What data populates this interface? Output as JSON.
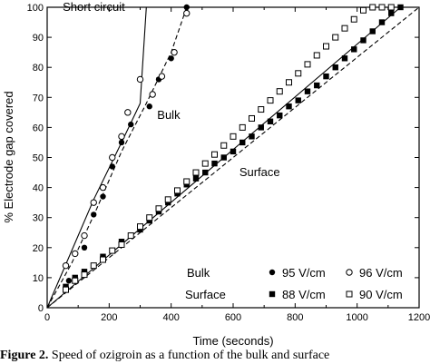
{
  "chart_data": {
    "type": "scatter",
    "xlabel": "Time (seconds)",
    "ylabel": "% Electrode gap covered",
    "xlim": [
      0,
      1200
    ],
    "ylim": [
      0,
      100
    ],
    "x_ticks": [
      0,
      200,
      400,
      600,
      800,
      1000,
      1200
    ],
    "y_ticks": [
      0,
      10,
      20,
      30,
      40,
      50,
      60,
      70,
      80,
      90,
      100
    ],
    "annotations": [
      {
        "text": "Short circuit",
        "x": 50,
        "y": 100
      },
      {
        "text": "Bulk",
        "x": 355,
        "y": 64
      },
      {
        "text": "Surface",
        "x": 620,
        "y": 45
      }
    ],
    "legend": {
      "position": "bottom-right",
      "rows": [
        {
          "label": "Bulk",
          "entries": [
            "95 V/cm",
            "96 V/cm"
          ]
        },
        {
          "label": "Surface",
          "entries": [
            "88 V/cm",
            "90 V/cm"
          ]
        }
      ]
    },
    "series": [
      {
        "name": "95 V/cm",
        "group": "Bulk",
        "marker": "filled-circle",
        "points": [
          [
            70,
            9
          ],
          [
            120,
            20
          ],
          [
            150,
            31
          ],
          [
            180,
            37
          ],
          [
            210,
            47
          ],
          [
            240,
            55
          ],
          [
            270,
            61
          ],
          [
            330,
            67
          ],
          [
            360,
            76
          ],
          [
            400,
            83
          ],
          [
            450,
            100
          ]
        ]
      },
      {
        "name": "96 V/cm",
        "group": "Bulk",
        "marker": "open-circle",
        "points": [
          [
            60,
            14
          ],
          [
            90,
            18
          ],
          [
            120,
            24
          ],
          [
            150,
            35
          ],
          [
            180,
            40
          ],
          [
            210,
            50
          ],
          [
            240,
            57
          ],
          [
            260,
            65
          ],
          [
            300,
            76
          ],
          [
            340,
            71
          ],
          [
            370,
            77
          ],
          [
            410,
            85
          ],
          [
            450,
            98
          ]
        ]
      },
      {
        "name": "88 V/cm",
        "group": "Surface",
        "marker": "filled-square",
        "points": [
          [
            60,
            7
          ],
          [
            90,
            10
          ],
          [
            120,
            12
          ],
          [
            150,
            14
          ],
          [
            180,
            17
          ],
          [
            210,
            19
          ],
          [
            240,
            22
          ],
          [
            270,
            24
          ],
          [
            300,
            26
          ],
          [
            330,
            29
          ],
          [
            360,
            32
          ],
          [
            390,
            35
          ],
          [
            420,
            38
          ],
          [
            450,
            41
          ],
          [
            480,
            43
          ],
          [
            510,
            45
          ],
          [
            540,
            48
          ],
          [
            570,
            50
          ],
          [
            600,
            52
          ],
          [
            630,
            55
          ],
          [
            660,
            57
          ],
          [
            690,
            60
          ],
          [
            720,
            62
          ],
          [
            750,
            64
          ],
          [
            780,
            67
          ],
          [
            810,
            69
          ],
          [
            840,
            72
          ],
          [
            870,
            74
          ],
          [
            900,
            77
          ],
          [
            930,
            80
          ],
          [
            960,
            83
          ],
          [
            990,
            86
          ],
          [
            1020,
            89
          ],
          [
            1050,
            92
          ],
          [
            1080,
            95
          ],
          [
            1110,
            98
          ],
          [
            1140,
            100
          ]
        ]
      },
      {
        "name": "90 V/cm",
        "group": "Surface",
        "marker": "open-square",
        "points": [
          [
            60,
            6
          ],
          [
            90,
            9
          ],
          [
            120,
            11
          ],
          [
            150,
            14
          ],
          [
            180,
            16
          ],
          [
            210,
            19
          ],
          [
            240,
            21
          ],
          [
            270,
            24
          ],
          [
            300,
            27
          ],
          [
            330,
            30
          ],
          [
            360,
            33
          ],
          [
            390,
            36
          ],
          [
            420,
            39
          ],
          [
            450,
            42
          ],
          [
            480,
            45
          ],
          [
            510,
            48
          ],
          [
            540,
            51
          ],
          [
            570,
            54
          ],
          [
            600,
            57
          ],
          [
            630,
            60
          ],
          [
            660,
            63
          ],
          [
            690,
            66
          ],
          [
            720,
            69
          ],
          [
            750,
            72
          ],
          [
            780,
            75
          ],
          [
            810,
            78
          ],
          [
            840,
            81
          ],
          [
            870,
            84
          ],
          [
            900,
            87
          ],
          [
            930,
            90
          ],
          [
            960,
            93
          ],
          [
            990,
            96
          ],
          [
            1020,
            99
          ],
          [
            1050,
            100
          ],
          [
            1080,
            100
          ],
          [
            1110,
            100
          ]
        ]
      }
    ],
    "fit_lines": [
      {
        "name": "Bulk 95 V/cm fit",
        "style": "dashed",
        "points": [
          [
            0,
            0
          ],
          [
            80,
            15
          ],
          [
            160,
            33
          ],
          [
            240,
            52
          ],
          [
            320,
            68
          ],
          [
            400,
            85
          ],
          [
            450,
            100
          ]
        ]
      },
      {
        "name": "Bulk 96 V/cm fit",
        "style": "solid",
        "points": [
          [
            0,
            0
          ],
          [
            150,
            36
          ],
          [
            240,
            55
          ],
          [
            300,
            68
          ],
          [
            320,
            100
          ],
          [
            460,
            100
          ]
        ]
      },
      {
        "name": "Surface 88 V/cm fit",
        "style": "dashed",
        "points": [
          [
            0,
            0
          ],
          [
            1200,
            100
          ]
        ]
      },
      {
        "name": "Surface 90 V/cm fit",
        "style": "solid",
        "points": [
          [
            0,
            0
          ],
          [
            1140,
            100
          ],
          [
            1200,
            100
          ]
        ]
      }
    ]
  },
  "caption": {
    "lead": "Figure 2.",
    "text": "  Speed of ozigroin as a function of the bulk and surface"
  }
}
